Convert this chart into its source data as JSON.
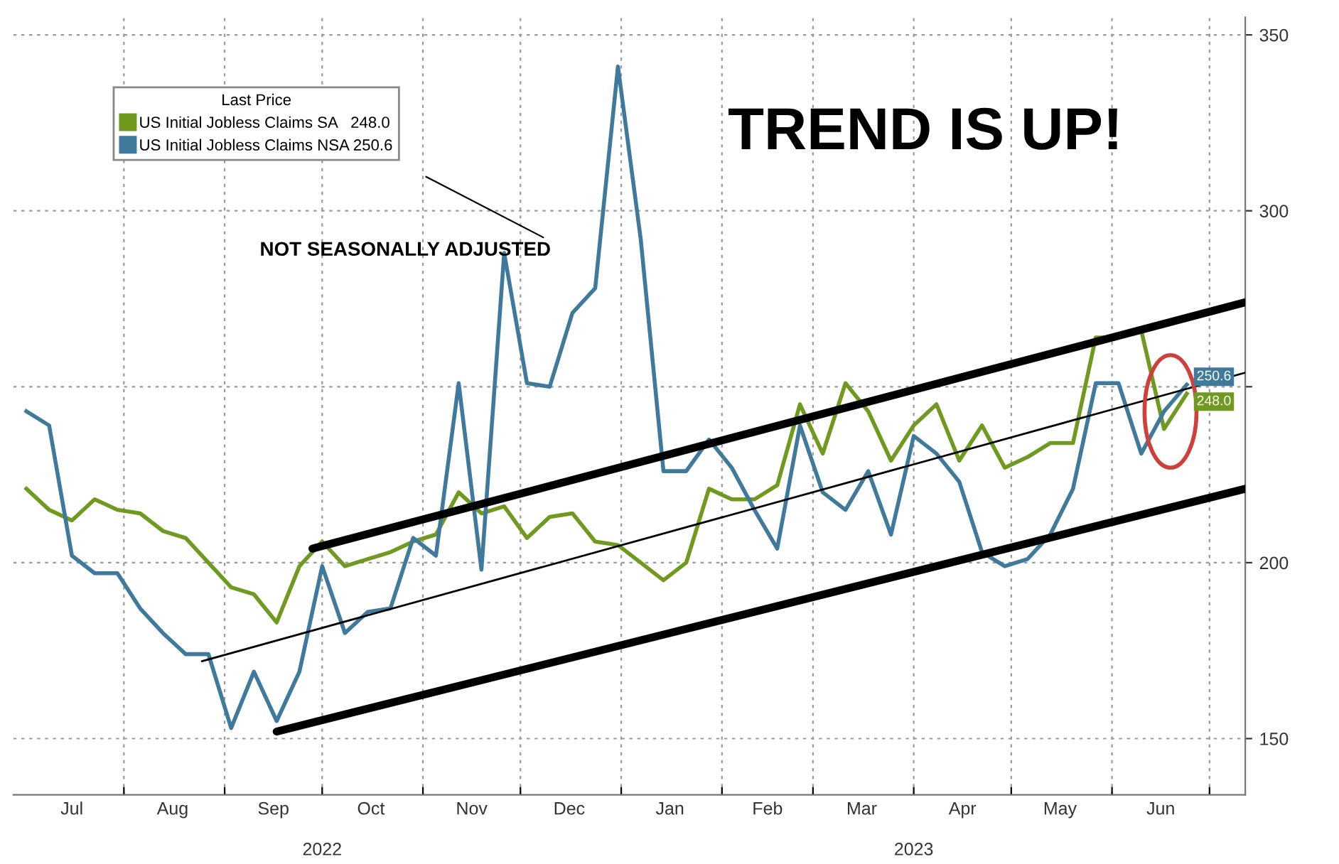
{
  "chart_data": {
    "type": "line",
    "legend_title": "Last Price",
    "legend": "top left",
    "grid": true,
    "marker": "none",
    "line_style": "solid",
    "x": [
      "2022-07-02",
      "2022-07-09",
      "2022-07-16",
      "2022-07-23",
      "2022-07-30",
      "2022-08-06",
      "2022-08-13",
      "2022-08-20",
      "2022-08-27",
      "2022-09-03",
      "2022-09-10",
      "2022-09-17",
      "2022-09-24",
      "2022-10-01",
      "2022-10-08",
      "2022-10-15",
      "2022-10-22",
      "2022-10-29",
      "2022-11-05",
      "2022-11-12",
      "2022-11-19",
      "2022-11-26",
      "2022-12-03",
      "2022-12-10",
      "2022-12-17",
      "2022-12-24",
      "2022-12-31",
      "2023-01-07",
      "2023-01-14",
      "2023-01-21",
      "2023-01-28",
      "2023-02-04",
      "2023-02-11",
      "2023-02-18",
      "2023-02-25",
      "2023-03-04",
      "2023-03-11",
      "2023-03-18",
      "2023-03-25",
      "2023-04-01",
      "2023-04-08",
      "2023-04-15",
      "2023-04-22",
      "2023-04-29",
      "2023-05-06",
      "2023-05-13",
      "2023-05-20",
      "2023-05-27",
      "2023-06-03",
      "2023-06-10",
      "2023-06-17",
      "2023-06-24"
    ],
    "series": [
      {
        "name": "US Initial Jobless Claims SA   248.0",
        "color": "#6f9a1f",
        "values": [
          221,
          215,
          212,
          218,
          215,
          214,
          209,
          207,
          200,
          193,
          191,
          183,
          199,
          206,
          199,
          201,
          203,
          206,
          208,
          220,
          214,
          216,
          207,
          213,
          214,
          206,
          205,
          200,
          195,
          200,
          221,
          218,
          218,
          222,
          245,
          231,
          251,
          243,
          229,
          239,
          245,
          229,
          239,
          227,
          230,
          234,
          234,
          264,
          264,
          266,
          238,
          248
        ],
        "value_labels": [
          null,
          null,
          null,
          null,
          null,
          null,
          null,
          null,
          null,
          null,
          null,
          null,
          null,
          null,
          null,
          null,
          null,
          null,
          null,
          null,
          null,
          null,
          null,
          null,
          null,
          null,
          null,
          null,
          null,
          null,
          null,
          null,
          null,
          null,
          null,
          null,
          null,
          null,
          null,
          null,
          null,
          null,
          null,
          null,
          null,
          null,
          null,
          null,
          null,
          null,
          null,
          "248.0"
        ]
      },
      {
        "name": "US Initial Jobless Claims NSA 250.6",
        "color": "#3f7a9c",
        "values": [
          243,
          239,
          202,
          197,
          197,
          187,
          180,
          174,
          174,
          153,
          169,
          155,
          169,
          199,
          180,
          186,
          187,
          207,
          202,
          251,
          198,
          288,
          251,
          250,
          271,
          278,
          341,
          292,
          226,
          226,
          235,
          227,
          215,
          204,
          239,
          220,
          215,
          226,
          208,
          236,
          231,
          223,
          203,
          199,
          201,
          208,
          221,
          251,
          251,
          231,
          243,
          250.6
        ],
        "value_labels": [
          null,
          null,
          null,
          null,
          null,
          null,
          null,
          null,
          null,
          null,
          null,
          null,
          null,
          null,
          null,
          null,
          null,
          null,
          null,
          null,
          null,
          null,
          null,
          null,
          null,
          null,
          null,
          null,
          null,
          null,
          null,
          null,
          null,
          null,
          null,
          null,
          null,
          null,
          null,
          null,
          null,
          null,
          null,
          null,
          null,
          null,
          null,
          null,
          null,
          null,
          null,
          "250.6"
        ]
      },
      {
        "type": "line",
        "color": "#000000",
        "x": [
          "2022-09-28",
          "2023-07-12"
        ],
        "values": [
          204,
          274
        ]
      },
      {
        "type": "line",
        "color": "#000000",
        "x": [
          "2022-08-25",
          "2023-07-12"
        ],
        "values": [
          172,
          254
        ]
      },
      {
        "type": "line",
        "color": "#000000",
        "x": [
          "2022-09-17",
          "2023-07-12"
        ],
        "values": [
          152,
          221
        ]
      }
    ],
    "xlim": [
      "2022-06-28",
      "2023-07-12"
    ],
    "xticks": [
      {
        "value": "2022-07-16",
        "label": "Jul"
      },
      {
        "value": "2022-08-01",
        "label": null
      },
      {
        "value": "2022-08-16",
        "label": "Aug"
      },
      {
        "value": "2022-09-01",
        "label": null
      },
      {
        "value": "2022-09-16",
        "label": "Sep"
      },
      {
        "value": "2022-10-01",
        "label": null
      },
      {
        "value": "2022-10-16",
        "label": "Oct"
      },
      {
        "value": "2022-11-01",
        "label": null
      },
      {
        "value": "2022-11-16",
        "label": "Nov"
      },
      {
        "value": "2022-12-01",
        "label": null
      },
      {
        "value": "2022-12-16",
        "label": "Dec"
      },
      {
        "value": "2023-01-01",
        "label": null
      },
      {
        "value": "2023-01-16",
        "label": "Jan"
      },
      {
        "value": "2023-02-01",
        "label": null
      },
      {
        "value": "2023-02-15",
        "label": "Feb"
      },
      {
        "value": "2023-03-01",
        "label": null
      },
      {
        "value": "2023-03-16",
        "label": "Mar"
      },
      {
        "value": "2023-04-01",
        "label": null
      },
      {
        "value": "2023-04-16",
        "label": "Apr"
      },
      {
        "value": "2023-05-01",
        "label": null
      },
      {
        "value": "2023-05-16",
        "label": "May"
      },
      {
        "value": "2023-06-01",
        "label": null
      },
      {
        "value": "2023-06-16",
        "label": "Jun"
      },
      {
        "value": "2023-07-01",
        "label": null
      }
    ],
    "ylim": [
      134,
      355
    ],
    "yticks": [
      150,
      200,
      {
        "value": 250,
        "label": null
      },
      300,
      350
    ],
    "annotations": [
      "NOT SEASONALLY ADJUSTED",
      "TREND IS UP!",
      "2022",
      "2023"
    ]
  }
}
